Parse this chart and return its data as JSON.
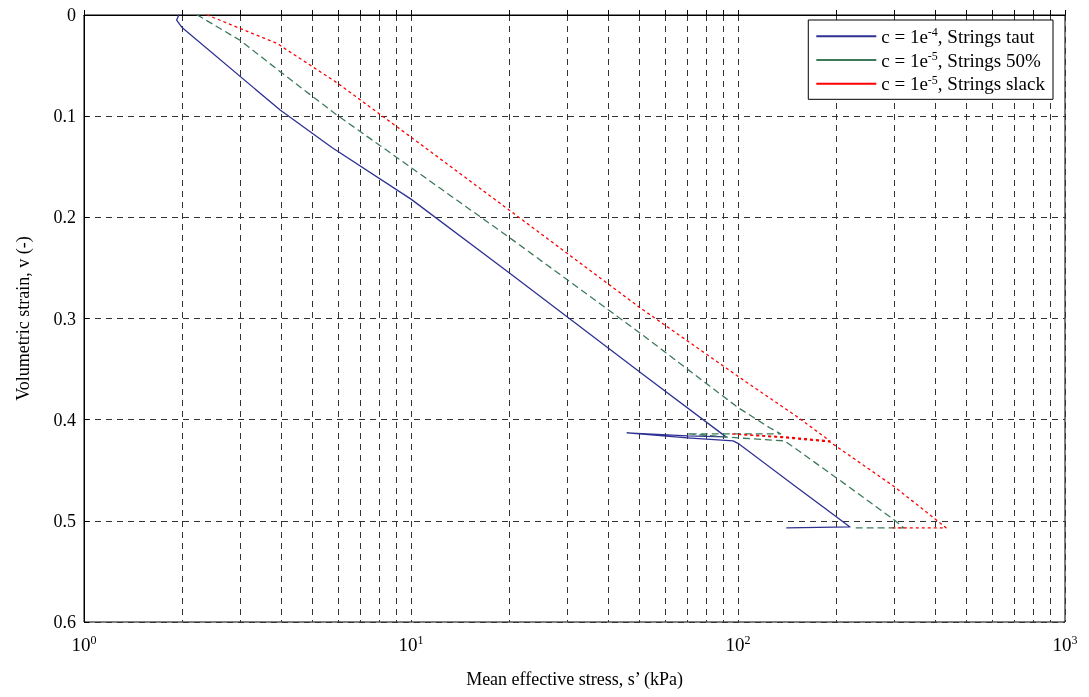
{
  "chart_data": {
    "type": "line",
    "xlabel": "Mean effective stress, s’ (kPa)",
    "ylabel": "Volumetric strain, v (-)",
    "xlim": [
      1,
      1000
    ],
    "xticks": [
      {
        "value": 1,
        "label": "10$^{0}$"
      },
      {
        "value": 2,
        "label": null
      },
      {
        "value": 3,
        "label": null
      },
      {
        "value": 4,
        "label": null
      },
      {
        "value": 5,
        "label": null
      },
      {
        "value": 6,
        "label": null
      },
      {
        "value": 7,
        "label": null
      },
      {
        "value": 8,
        "label": null
      },
      {
        "value": 9,
        "label": null
      },
      {
        "value": 10,
        "label": "10$^{1}$"
      },
      {
        "value": 20,
        "label": null
      },
      {
        "value": 30,
        "label": null
      },
      {
        "value": 40,
        "label": null
      },
      {
        "value": 50,
        "label": null
      },
      {
        "value": 60,
        "label": null
      },
      {
        "value": 70,
        "label": null
      },
      {
        "value": 80,
        "label": null
      },
      {
        "value": 90,
        "label": null
      },
      {
        "value": 100,
        "label": "10$^{2}$"
      },
      {
        "value": 200,
        "label": null
      },
      {
        "value": 300,
        "label": null
      },
      {
        "value": 400,
        "label": null
      },
      {
        "value": 500,
        "label": null
      },
      {
        "value": 600,
        "label": null
      },
      {
        "value": 700,
        "label": null
      },
      {
        "value": 800,
        "label": null
      },
      {
        "value": 900,
        "label": null
      },
      {
        "value": 1000,
        "label": "10$^{3}$"
      }
    ],
    "ylim": [
      0.6,
      0
    ],
    "yticks": [
      0,
      0.1,
      0.2,
      0.3,
      0.4,
      0.5,
      0.6
    ],
    "log": "x",
    "grid": true,
    "legend": "top right",
    "marker": "none",
    "series": [
      {
        "name": "c = 1e$^{-4}$, Strings taut",
        "color": "#2e3192",
        "line_style": "solid",
        "x": [
          1.95,
          1.92,
          1.99,
          3.98,
          5.73,
          10,
          20,
          51.6,
          91.9,
          70,
          45.8,
          70,
          96.6,
          100.7,
          150,
          220,
          141
        ],
        "values": [
          0,
          0.005,
          0.012,
          0.094,
          0.131,
          0.182,
          0.255,
          0.356,
          0.417,
          0.416,
          0.413,
          0.418,
          0.421,
          0.424,
          0.466,
          0.506,
          0.507
        ]
      },
      {
        "name": "c = 1e$^{-5}$, Strings 50%",
        "color": "#3d7a5a",
        "line_style": "dashed",
        "x": [
          2.22,
          3.0,
          3.98,
          5.94,
          8.2,
          20,
          50,
          77.6,
          100,
          125,
          135,
          100,
          69.8,
          100,
          139,
          201,
          300,
          322,
          230
        ],
        "values": [
          0,
          0.025,
          0.056,
          0.099,
          0.131,
          0.22,
          0.314,
          0.361,
          0.388,
          0.408,
          0.414,
          0.414,
          0.414,
          0.418,
          0.421,
          0.458,
          0.499,
          0.507,
          0.507
        ]
      },
      {
        "name": "c = 1e$^{-5}$, Strings slack",
        "color": "#ff0000",
        "line_style": "dotted",
        "x": [
          2.38,
          3.89,
          5.94,
          9.93,
          20,
          50,
          104,
          150,
          191,
          140,
          95,
          140,
          191,
          300,
          400,
          433,
          298
        ],
        "values": [
          0,
          0.028,
          0.067,
          0.12,
          0.193,
          0.289,
          0.361,
          0.396,
          0.421,
          0.417,
          0.414,
          0.418,
          0.422,
          0.466,
          0.498,
          0.507,
          0.507
        ]
      }
    ]
  }
}
